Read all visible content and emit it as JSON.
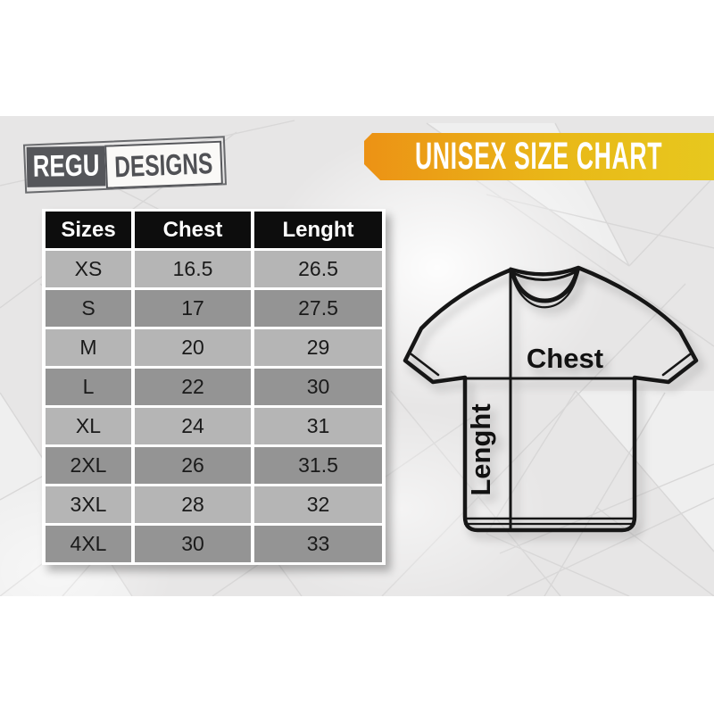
{
  "logo": {
    "part1": "REGU",
    "part2": "DESIGNS"
  },
  "banner": {
    "label": "UNISEX SIZE CHART"
  },
  "size_table": {
    "columns": [
      "Sizes",
      "Chest",
      "Lenght"
    ],
    "rows": [
      [
        "XS",
        "16.5",
        "26.5"
      ],
      [
        "S",
        "17",
        "27.5"
      ],
      [
        "M",
        "20",
        "29"
      ],
      [
        "L",
        "22",
        "30"
      ],
      [
        "XL",
        "24",
        "31"
      ],
      [
        "2XL",
        "26",
        "31.5"
      ],
      [
        "3XL",
        "28",
        "32"
      ],
      [
        "4XL",
        "30",
        "33"
      ]
    ]
  },
  "diagram": {
    "chest_label": "Chest",
    "length_label": "Lenght"
  },
  "colors": {
    "banner_gradient_left": "#EC9215",
    "banner_gradient_right": "#E7C81E",
    "banner_text": "#FFFFFF",
    "table_header_bg": "#0D0D0D",
    "table_header_text": "#FFFFFF",
    "row_light": "#B5B5B5",
    "row_dark": "#949494",
    "cell_text": "#1A1A1A",
    "logo_box_dark": "#55565A",
    "band_background": "#E7E6E6",
    "shirt_outline": "#161616"
  },
  "chart_data": {
    "type": "table",
    "title": "UNISEX SIZE CHART",
    "columns": [
      "Sizes",
      "Chest",
      "Lenght"
    ],
    "rows": [
      [
        "XS",
        "16.5",
        "26.5"
      ],
      [
        "S",
        "17",
        "27.5"
      ],
      [
        "M",
        "20",
        "29"
      ],
      [
        "L",
        "22",
        "30"
      ],
      [
        "XL",
        "24",
        "31"
      ],
      [
        "2XL",
        "26",
        "31.5"
      ],
      [
        "3XL",
        "28",
        "32"
      ],
      [
        "4XL",
        "30",
        "33"
      ]
    ]
  }
}
